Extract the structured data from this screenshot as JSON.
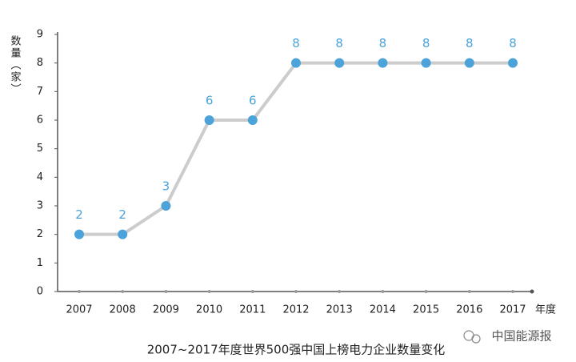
{
  "chart_data": {
    "type": "line",
    "title": "2007~2017年度世界500强中国上榜电力企业数量变化",
    "y_label": "数量（家）",
    "x_label": "年度",
    "watermark": "中国能源报",
    "categories": [
      "2007",
      "2008",
      "2009",
      "2010",
      "2011",
      "2012",
      "2013",
      "2014",
      "2015",
      "2016",
      "2017"
    ],
    "values": [
      2,
      2,
      3,
      6,
      6,
      8,
      8,
      8,
      8,
      8,
      8
    ],
    "line_color": "#cccccc",
    "marker_color": "#4ba3da",
    "ylim": [
      0,
      9
    ],
    "yticks": [
      0,
      1,
      2,
      3,
      4,
      5,
      6,
      7,
      8,
      9
    ],
    "grid": false
  }
}
